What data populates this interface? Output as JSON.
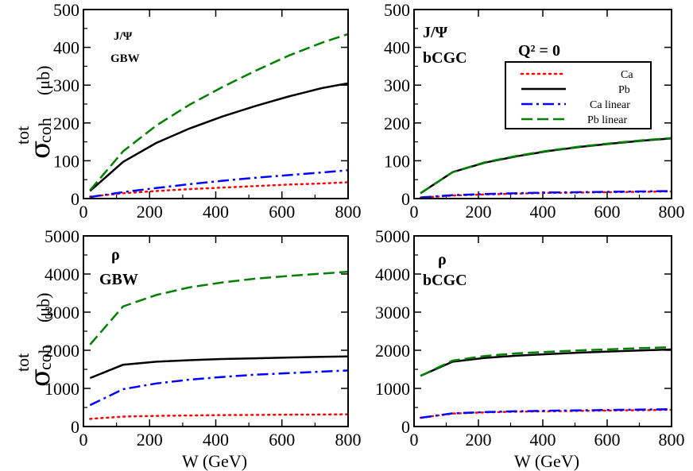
{
  "chart_data": {
    "type": "line",
    "x_axis_label": "W (GeV)",
    "y_axis_label": "σ",
    "y_axis_sup": "tot",
    "y_axis_sub": "coh",
    "y_axis_unit": "(μb)",
    "legend": {
      "placement": "top-right of top-right panel",
      "entries": [
        "Ca",
        "Pb",
        "Ca linear",
        "Pb linear"
      ]
    },
    "series_styles": {
      "Ca": {
        "color": "#ff0000",
        "style": "dotted"
      },
      "Pb": {
        "color": "#000000",
        "style": "solid"
      },
      "Ca linear": {
        "color": "#0000ff",
        "style": "dash-dot"
      },
      "Pb linear": {
        "color": "#008000",
        "style": "dashed"
      }
    },
    "panels": [
      {
        "id": "jpsi-gbw",
        "label_top": "J/Ψ",
        "label_bottom": "GBW",
        "xlim": [
          0,
          800
        ],
        "ylim": [
          0,
          500
        ],
        "xticks": [
          0,
          200,
          400,
          600,
          800
        ],
        "yticks": [
          0,
          100,
          200,
          300,
          400,
          500
        ],
        "series": [
          {
            "name": "Ca",
            "x": [
              20,
              120,
              220,
              320,
              420,
              520,
              620,
              720,
              800
            ],
            "y": [
              5,
              14,
              20,
              25,
              29,
              33,
              37,
              40,
              43
            ]
          },
          {
            "name": "Pb",
            "x": [
              20,
              120,
              220,
              320,
              420,
              520,
              620,
              720,
              800
            ],
            "y": [
              20,
              97,
              147,
              185,
              217,
              245,
              270,
              292,
              305
            ]
          },
          {
            "name": "Ca linear",
            "x": [
              20,
              120,
              220,
              320,
              420,
              520,
              620,
              720,
              800
            ],
            "y": [
              4,
              17,
              28,
              38,
              47,
              55,
              62,
              69,
              75
            ]
          },
          {
            "name": "Pb linear",
            "x": [
              20,
              120,
              220,
              320,
              420,
              520,
              620,
              720,
              800
            ],
            "y": [
              22,
              125,
              193,
              248,
              295,
              338,
              378,
              412,
              435
            ]
          }
        ]
      },
      {
        "id": "jpsi-bcgc",
        "label_top": "J/Ψ",
        "label_bottom": "bCGC",
        "label_extra": "Q² = 0",
        "xlim": [
          0,
          800
        ],
        "ylim": [
          0,
          500
        ],
        "xticks": [
          0,
          200,
          400,
          600,
          800
        ],
        "yticks": [
          0,
          100,
          200,
          300,
          400,
          500
        ],
        "series": [
          {
            "name": "Ca",
            "x": [
              20,
              120,
              220,
              320,
              420,
              520,
              620,
              720,
              800
            ],
            "y": [
              2,
              8,
              11,
              13,
              15,
              16,
              17,
              18,
              19
            ]
          },
          {
            "name": "Pb",
            "x": [
              20,
              120,
              220,
              320,
              420,
              520,
              620,
              720,
              800
            ],
            "y": [
              14,
              70,
              95,
              112,
              126,
              137,
              146,
              154,
              159
            ]
          },
          {
            "name": "Ca linear",
            "x": [
              20,
              120,
              220,
              320,
              420,
              520,
              620,
              720,
              800
            ],
            "y": [
              3,
              9,
              12,
              14,
              16,
              17,
              18,
              19,
              20
            ]
          },
          {
            "name": "Pb linear",
            "x": [
              20,
              120,
              220,
              320,
              420,
              520,
              620,
              720,
              800
            ],
            "y": [
              14,
              70,
              96,
              113,
              127,
              138,
              147,
              155,
              160
            ]
          }
        ]
      },
      {
        "id": "rho-gbw",
        "label_top": "ρ",
        "label_bottom": "GBW",
        "xlim": [
          0,
          800
        ],
        "ylim": [
          0,
          5000
        ],
        "xticks": [
          0,
          200,
          400,
          600,
          800
        ],
        "yticks": [
          0,
          1000,
          2000,
          3000,
          4000,
          5000
        ],
        "series": [
          {
            "name": "Ca",
            "x": [
              20,
              120,
              220,
              320,
              420,
              520,
              620,
              720,
              800
            ],
            "y": [
              200,
              260,
              280,
              290,
              300,
              305,
              310,
              315,
              320
            ]
          },
          {
            "name": "Pb",
            "x": [
              20,
              120,
              220,
              320,
              420,
              520,
              620,
              720,
              800
            ],
            "y": [
              1270,
              1620,
              1700,
              1740,
              1770,
              1790,
              1810,
              1830,
              1840
            ]
          },
          {
            "name": "Ca linear",
            "x": [
              20,
              120,
              220,
              320,
              420,
              520,
              620,
              720,
              800
            ],
            "y": [
              560,
              980,
              1130,
              1230,
              1300,
              1360,
              1400,
              1440,
              1470
            ]
          },
          {
            "name": "Pb linear",
            "x": [
              20,
              120,
              220,
              320,
              420,
              520,
              620,
              720,
              800
            ],
            "y": [
              2150,
              3150,
              3450,
              3650,
              3780,
              3880,
              3950,
              4010,
              4060
            ]
          }
        ]
      },
      {
        "id": "rho-bcgc",
        "label_top": "ρ",
        "label_bottom": "bCGC",
        "xlim": [
          0,
          800
        ],
        "ylim": [
          0,
          5000
        ],
        "xticks": [
          0,
          200,
          400,
          600,
          800
        ],
        "yticks": [
          0,
          1000,
          2000,
          3000,
          4000,
          5000
        ],
        "series": [
          {
            "name": "Ca",
            "x": [
              20,
              120,
              220,
              320,
              420,
              520,
              620,
              720,
              800
            ],
            "y": [
              230,
              340,
              370,
              390,
              400,
              410,
              420,
              430,
              440
            ]
          },
          {
            "name": "Pb",
            "x": [
              20,
              120,
              220,
              320,
              420,
              520,
              620,
              720,
              800
            ],
            "y": [
              1330,
              1700,
              1800,
              1860,
              1900,
              1940,
              1970,
              2000,
              2020
            ]
          },
          {
            "name": "Ca linear",
            "x": [
              20,
              120,
              220,
              320,
              420,
              520,
              620,
              720,
              800
            ],
            "y": [
              230,
              345,
              380,
              400,
              415,
              425,
              435,
              445,
              455
            ]
          },
          {
            "name": "Pb linear",
            "x": [
              20,
              120,
              220,
              320,
              420,
              520,
              620,
              720,
              800
            ],
            "y": [
              1330,
              1730,
              1850,
              1920,
              1960,
              2000,
              2030,
              2060,
              2080
            ]
          }
        ]
      }
    ]
  }
}
